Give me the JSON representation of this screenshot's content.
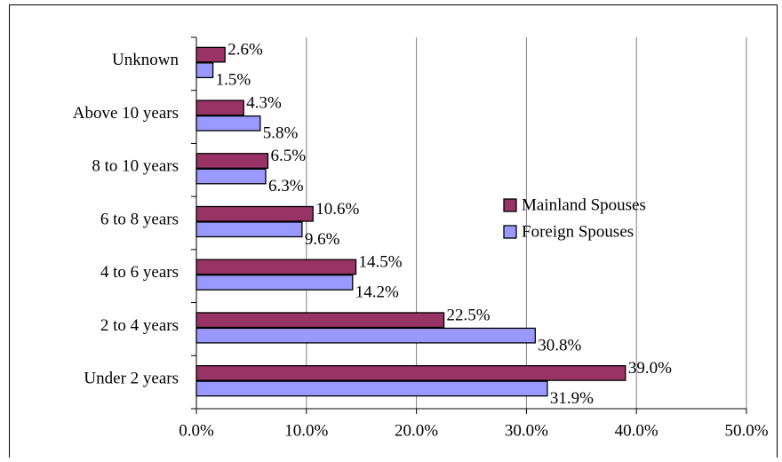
{
  "chart_data": {
    "type": "bar",
    "orientation": "horizontal",
    "categories": [
      "Unknown",
      "Above 10 years",
      "8 to 10 years",
      "6 to 8 years",
      "4 to 6 years",
      "2 to 4 years",
      "Under 2 years"
    ],
    "series": [
      {
        "name": "Mainland Spouses",
        "color": "#993366",
        "values": [
          2.6,
          4.3,
          6.5,
          10.6,
          14.5,
          22.5,
          39.0
        ],
        "value_labels": [
          "2.6%",
          "4.3%",
          "6.5%",
          "10.6%",
          "14.5%",
          "22.5%",
          "39.0%"
        ]
      },
      {
        "name": "Foreign Spouses",
        "color": "#9999ff",
        "values": [
          1.5,
          5.8,
          6.3,
          9.6,
          14.2,
          30.8,
          31.9
        ],
        "value_labels": [
          "1.5%",
          "5.8%",
          "6.3%",
          "9.6%",
          "14.2%",
          "30.8%",
          "31.9%"
        ]
      }
    ],
    "xlim": [
      0,
      50
    ],
    "xticks": [
      {
        "value": 0,
        "label": "0.0%"
      },
      {
        "value": 10,
        "label": "10.0%"
      },
      {
        "value": 20,
        "label": "20.0%"
      },
      {
        "value": 30,
        "label": "30.0%"
      },
      {
        "value": 40,
        "label": "40.0%"
      },
      {
        "value": 50,
        "label": "50.0%"
      }
    ],
    "grid": true,
    "legend": "right"
  }
}
